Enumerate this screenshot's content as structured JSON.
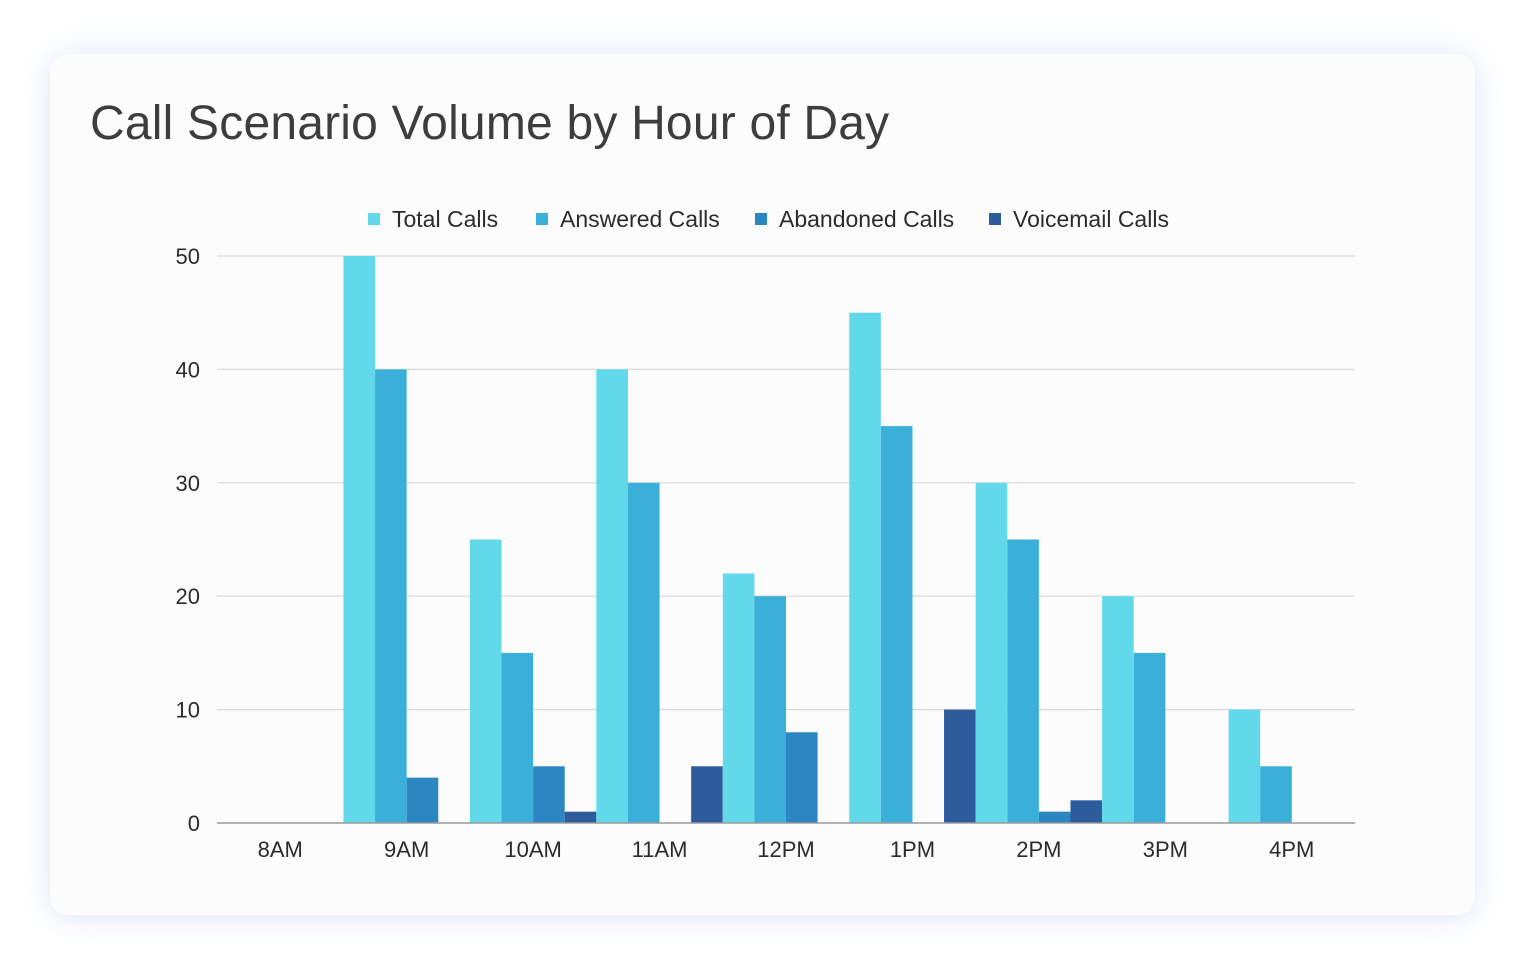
{
  "title": "Call Scenario Volume by Hour of Day",
  "chart_data": {
    "type": "bar",
    "title": "Call Scenario Volume by Hour of Day",
    "xlabel": "",
    "ylabel": "",
    "categories": [
      "8AM",
      "9AM",
      "10AM",
      "11AM",
      "12PM",
      "1PM",
      "2PM",
      "3PM",
      "4PM"
    ],
    "ylim": [
      0,
      50
    ],
    "yticks": [
      0,
      10,
      20,
      30,
      40,
      50
    ],
    "grid": true,
    "legend_position": "top-center",
    "series": [
      {
        "name": "Total Calls",
        "color": "#62d9eb",
        "values": [
          0,
          50,
          25,
          40,
          22,
          45,
          30,
          20,
          10
        ]
      },
      {
        "name": "Answered Calls",
        "color": "#39afda",
        "values": [
          0,
          40,
          15,
          30,
          20,
          35,
          25,
          15,
          5
        ]
      },
      {
        "name": "Abandoned Calls",
        "color": "#2b86c2",
        "values": [
          0,
          4,
          5,
          0,
          8,
          0,
          1,
          0,
          0
        ]
      },
      {
        "name": "Voicemail Calls",
        "color": "#2c5c9c",
        "values": [
          0,
          0,
          1,
          5,
          0,
          10,
          2,
          0,
          0
        ]
      }
    ]
  }
}
